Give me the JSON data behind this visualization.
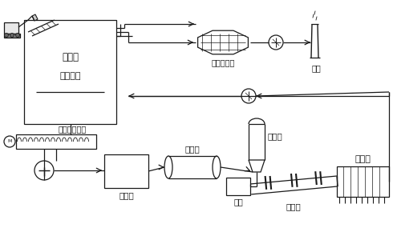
{
  "figsize": [
    4.9,
    2.95
  ],
  "dpi": 100,
  "labels": {
    "chimney": "烟囱",
    "active_carbon": "活性炭除臭",
    "sludge_silo": "污泥仓",
    "hydraulic": "液压滑架",
    "twin_screw": "双螺旋给料机",
    "granulator": "造粒机",
    "dryer": "干燥机",
    "decomposer": "分解炉",
    "smoke_room": "烟室",
    "rotary_kiln": "回转窑",
    "cooler": "篦冷机"
  }
}
